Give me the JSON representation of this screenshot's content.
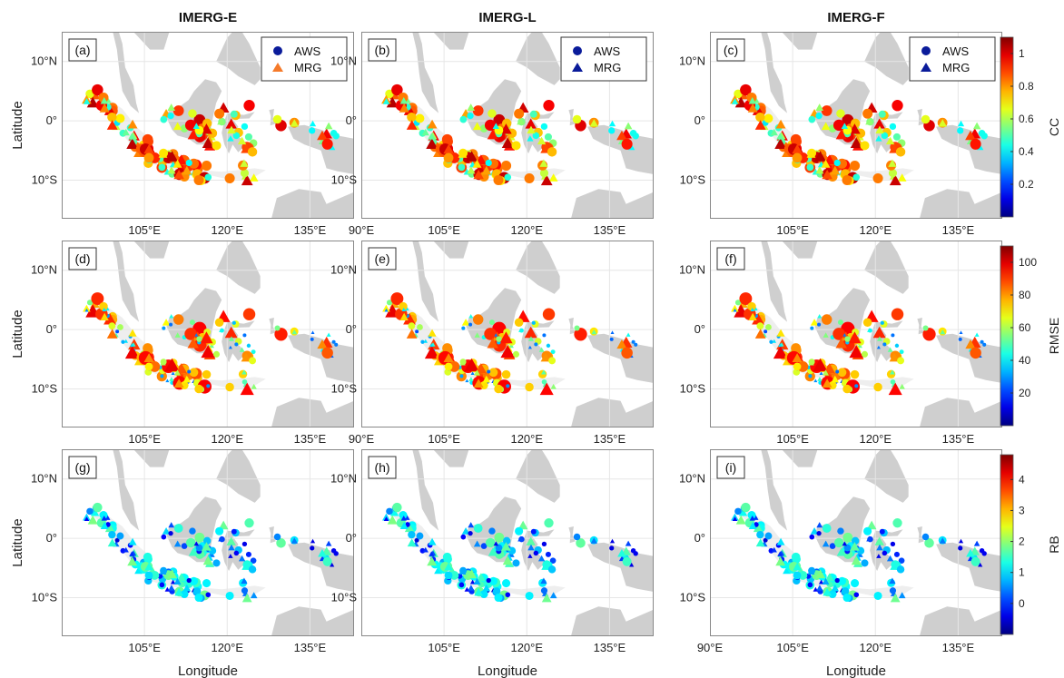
{
  "column_titles": [
    "IMERG-E",
    "IMERG-L",
    "IMERG-F"
  ],
  "row_metrics": [
    "CC",
    "RMSE",
    "RB"
  ],
  "panel_labels": [
    "(a)",
    "(b)",
    "(c)",
    "(d)",
    "(e)",
    "(f)",
    "(g)",
    "(h)",
    "(i)"
  ],
  "y_ticks": [
    "10°N",
    "0°",
    "10°S"
  ],
  "x_ticks": [
    "90°E",
    "105°E",
    "120°E",
    "135°E"
  ],
  "x_axis_label": "Longitude",
  "y_axis_label": "Latitude",
  "legend": {
    "aws": "AWS",
    "mrg": "MRG"
  },
  "colorbars": [
    {
      "title": "CC",
      "ticks": [
        "0.2",
        "0.4",
        "0.6",
        "0.8",
        "1"
      ],
      "range": [
        0,
        1.1
      ]
    },
    {
      "title": "RMSE",
      "ticks": [
        "20",
        "40",
        "60",
        "80",
        "100"
      ],
      "range": [
        0,
        110
      ]
    },
    {
      "title": "RB",
      "ticks": [
        "0",
        "1",
        "2",
        "3",
        "4"
      ],
      "range": [
        -1,
        4.8
      ]
    }
  ],
  "colors": {
    "land": "#cfcfcf",
    "grid": "#e6e6e6",
    "axis": "#888888",
    "legend_marker_dark": "#0a1b9a",
    "legend_marker_orange": "#f57a2a"
  },
  "map_extent": {
    "lon": [
      90,
      143
    ],
    "lat": [
      -16.5,
      15
    ]
  },
  "chart_data": {
    "type": "scatter",
    "title": "",
    "xlabel": "Longitude",
    "ylabel": "Latitude",
    "series": [
      {
        "name": "AWS",
        "marker": "circle"
      },
      {
        "name": "MRG",
        "marker": "triangle"
      }
    ]
  }
}
